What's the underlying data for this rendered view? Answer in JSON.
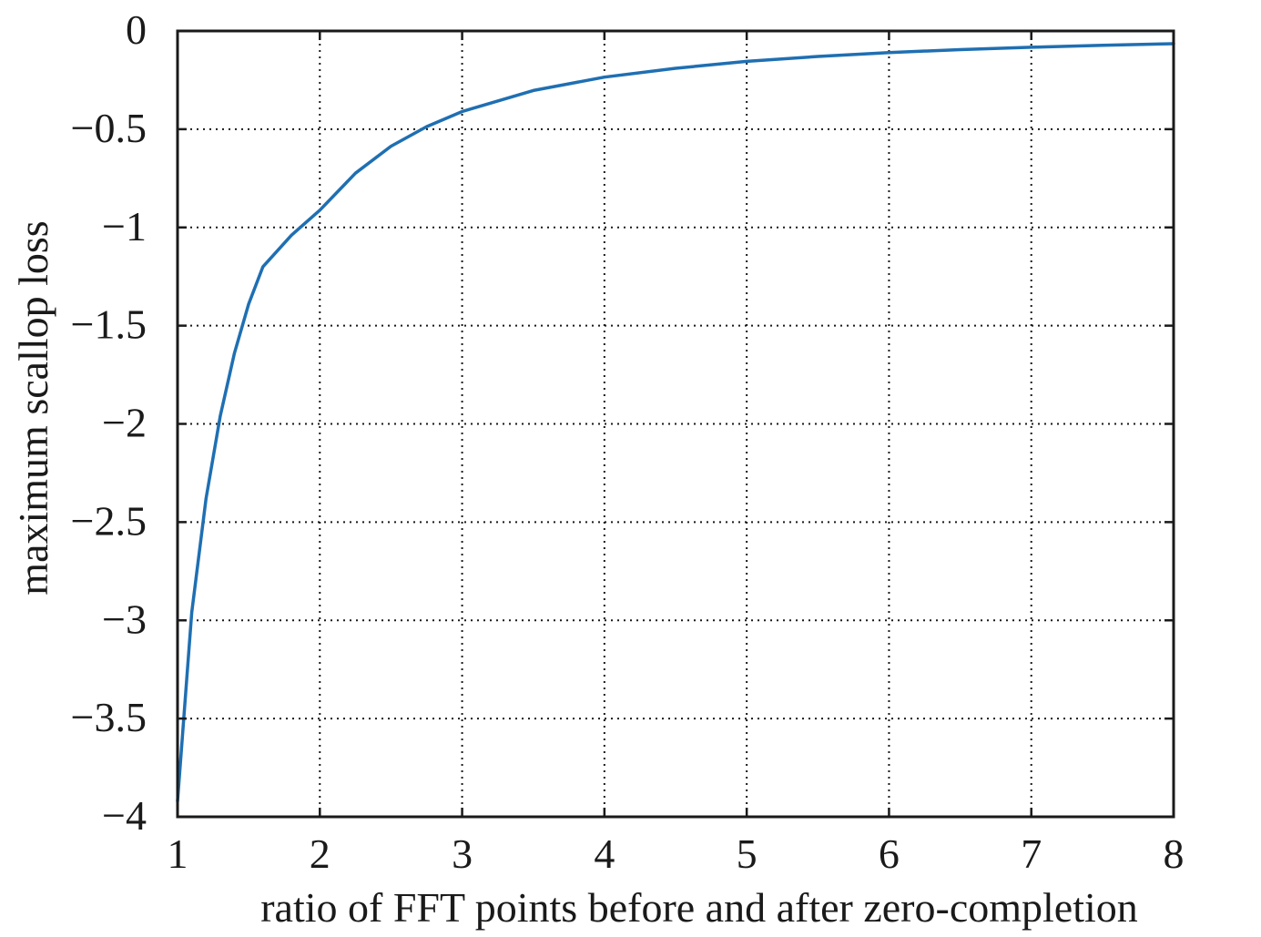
{
  "chart_data": {
    "type": "line",
    "title": "",
    "xlabel": "ratio of FFT points before and after zero-completion",
    "ylabel": "maximum scallop loss",
    "xlim": [
      1,
      8
    ],
    "ylim": [
      -4,
      0
    ],
    "xticks": [
      1,
      2,
      3,
      4,
      5,
      6,
      7,
      8
    ],
    "yticks": [
      0,
      -0.5,
      -1,
      -1.5,
      -2,
      -2.5,
      -3,
      -3.5,
      -4
    ],
    "xtick_labels": [
      "1",
      "2",
      "3",
      "4",
      "5",
      "6",
      "7",
      "8"
    ],
    "ytick_labels": [
      "0",
      "−0.5",
      "−1",
      "−1.5",
      "−2",
      "−2.5",
      "−3",
      "−3.5",
      "−4"
    ],
    "grid": true,
    "series": [
      {
        "color": "#1f6fb2",
        "x": [
          1,
          1.1,
          1.2,
          1.3,
          1.4,
          1.5,
          1.6,
          1.8,
          2,
          2.25,
          2.5,
          2.75,
          3,
          3.5,
          4,
          4.5,
          5,
          5.5,
          6,
          6.5,
          7,
          7.5,
          8
        ],
        "y": [
          -3.92,
          -2.96,
          -2.38,
          -1.96,
          -1.64,
          -1.39,
          -1.2,
          -1.04,
          -0.912,
          -0.724,
          -0.587,
          -0.487,
          -0.41,
          -0.303,
          -0.235,
          -0.19,
          -0.155,
          -0.13,
          -0.11,
          -0.095,
          -0.083,
          -0.073,
          -0.065
        ]
      }
    ]
  }
}
